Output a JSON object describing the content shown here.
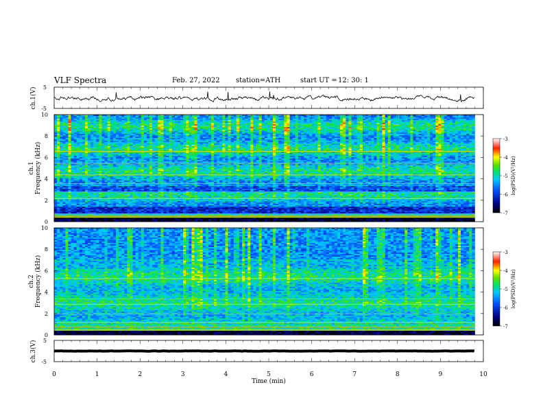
{
  "header": {
    "title": "VLF  Spectra",
    "date": "Feb. 27, 2022",
    "station": "station=ATH",
    "start_label": "start  UT  =",
    "start_time": "12: 30: 1"
  },
  "chart_data": [
    {
      "type": "line",
      "name": "ch1-waveform",
      "ylabel": "ch.1(V)",
      "ylim": [
        -5,
        5
      ],
      "yticks": [
        "5",
        "-5"
      ],
      "xlim": [
        0,
        10
      ]
    },
    {
      "type": "heatmap",
      "name": "ch1-spectrogram",
      "ylabel": "Frequency (kHz)",
      "channel_label": "ch.1",
      "ylim": [
        0,
        10
      ],
      "yticks": [
        "0",
        "2",
        "4",
        "6",
        "8",
        "10"
      ],
      "xlim": [
        0,
        10
      ],
      "data_end_min": 9.8,
      "colorbar": {
        "label": "log(PSD)(V²/Hz)",
        "range": [
          -7,
          -3
        ],
        "ticks": [
          "-3",
          "-4",
          "-5",
          "-6",
          "-7"
        ]
      }
    },
    {
      "type": "heatmap",
      "name": "ch2-spectrogram",
      "ylabel": "Frequency (kHz)",
      "channel_label": "ch.2",
      "ylim": [
        0,
        10
      ],
      "yticks": [
        "0",
        "2",
        "4",
        "6",
        "8",
        "10"
      ],
      "xlim": [
        0,
        10
      ],
      "data_end_min": 9.8,
      "colorbar": {
        "label": "log(PSD)(V²/Hz)",
        "range": [
          -7,
          -3
        ],
        "ticks": [
          "-3",
          "-4",
          "-5",
          "-6",
          "-7"
        ]
      }
    },
    {
      "type": "line",
      "name": "ch3-waveform",
      "ylabel": "ch.3(V)",
      "ylim": [
        -5,
        5
      ],
      "yticks": [
        "5",
        "-5"
      ],
      "xlim": [
        0,
        10
      ],
      "xlabel": "Time  (min)",
      "xticks": [
        "0",
        "1",
        "2",
        "3",
        "4",
        "5",
        "6",
        "7",
        "8",
        "9",
        "10"
      ]
    }
  ]
}
